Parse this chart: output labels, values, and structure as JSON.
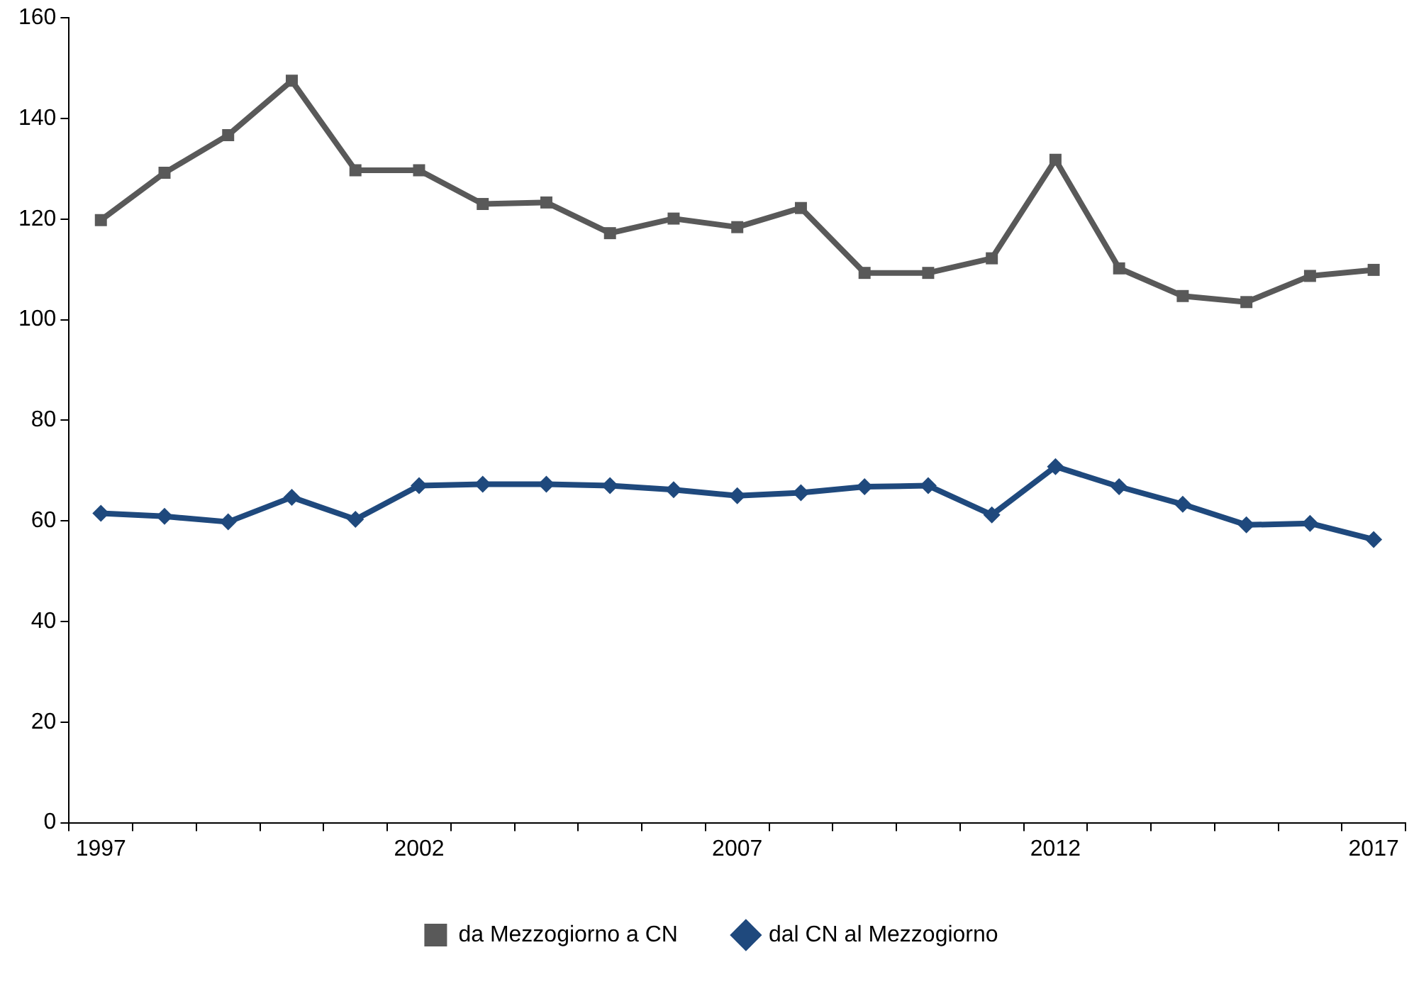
{
  "chart_data": {
    "type": "line",
    "categories": [
      "1997",
      null,
      null,
      null,
      null,
      "2002",
      null,
      null,
      null,
      null,
      "2007",
      null,
      null,
      null,
      null,
      "2012",
      null,
      null,
      null,
      null,
      "2017"
    ],
    "series": [
      {
        "name": "da Mezzogiorno a CN",
        "color": "#595959",
        "marker": "square",
        "values": [
          119.8,
          129.2,
          136.7,
          147.5,
          129.7,
          129.7,
          123,
          123.3,
          117.2,
          120.1,
          118.4,
          122.2,
          109.3,
          109.3,
          112.2,
          131.8,
          110.2,
          104.7,
          103.5,
          108.7,
          109.9
        ]
      },
      {
        "name": "dal CN al Mezzogiorno",
        "color": "#1f497d",
        "marker": "diamond",
        "values": [
          61.5,
          60.9,
          59.8,
          64.7,
          60.3,
          67,
          67.3,
          67.3,
          67,
          66.2,
          65,
          65.6,
          66.8,
          67,
          61.2,
          70.8,
          66.8,
          63.3,
          59.2,
          59.5,
          56.3
        ]
      }
    ],
    "ylim": [
      0,
      160
    ],
    "yticks": [
      0,
      20,
      40,
      60,
      80,
      100,
      120,
      140,
      160
    ],
    "grid": false,
    "legend": "bottom",
    "line_style": "solid"
  }
}
